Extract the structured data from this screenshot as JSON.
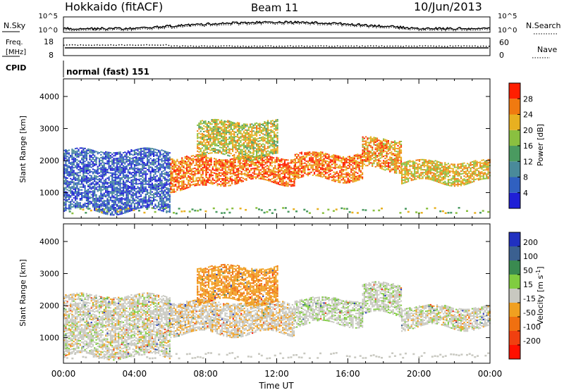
{
  "header": {
    "station": "Hokkaido (fitACF)",
    "beam": "Beam 11",
    "date": "10/Jun/2013"
  },
  "noise_panel": {
    "left_label": "N.Sky",
    "right_label": "N.Search",
    "y_ticks": [
      "10^5",
      "10^0"
    ]
  },
  "freq_panel": {
    "left_label_line1": "Freq.",
    "left_label_line2": "[MHz]",
    "left_ticks": [
      "18",
      "8"
    ],
    "right_ticks": [
      "60",
      "0"
    ],
    "right_label": "Nave"
  },
  "cpid_panel": {
    "label": "CPID",
    "value": "normal (fast) 151"
  },
  "colors": {
    "power": [
      "#1f1fd6",
      "#3060c0",
      "#4a8a9a",
      "#4a9a60",
      "#8ac040",
      "#e8b020",
      "#f07a10",
      "#ff1e00"
    ],
    "velocity": [
      "#2030c0",
      "#3b6090",
      "#3a8a50",
      "#80cc40",
      "#c8c8c0",
      "#f0a020",
      "#f07010",
      "#f04010",
      "#ff1000"
    ]
  },
  "chart_data": [
    {
      "type": "heatmap",
      "ylabel": "Slant Range [km]",
      "y_ticks": [
        "1000",
        "2000",
        "3000",
        "4000"
      ],
      "ylim": [
        200,
        4550
      ],
      "xlabel": "",
      "colorbar": {
        "label": "Power [dB]",
        "ticks": [
          "4",
          "8",
          "12",
          "16",
          "20",
          "24",
          "28"
        ],
        "range": [
          0,
          32
        ]
      },
      "echo_regions": [
        {
          "start_hour": 0.0,
          "end_hour": 6.0,
          "range_km": [
            400,
            2300
          ],
          "value": 6
        },
        {
          "start_hour": 6.0,
          "end_hour": 8.0,
          "range_km": [
            1100,
            2100
          ],
          "value": 26
        },
        {
          "start_hour": 8.0,
          "end_hour": 13.0,
          "range_km": [
            1300,
            2100
          ],
          "value": 27
        },
        {
          "start_hour": 13.0,
          "end_hour": 16.8,
          "range_km": [
            1400,
            2200
          ],
          "value": 26
        },
        {
          "start_hour": 16.8,
          "end_hour": 19.0,
          "range_km": [
            1700,
            2650
          ],
          "value": 24
        },
        {
          "start_hour": 19.0,
          "end_hour": 24.0,
          "range_km": [
            1300,
            1950
          ],
          "value": 22
        },
        {
          "start_hour": 7.5,
          "end_hour": 12.0,
          "range_km": [
            2100,
            3200
          ],
          "value": 20
        }
      ]
    },
    {
      "type": "heatmap",
      "ylabel": "Slant Range [km]",
      "y_ticks": [
        "1000",
        "2000",
        "3000",
        "4000"
      ],
      "ylim": [
        200,
        4550
      ],
      "xlabel": "Time UT",
      "x_ticks": [
        "00:00",
        "04:00",
        "08:00",
        "12:00",
        "16:00",
        "20:00",
        "00:00"
      ],
      "xlim": [
        0,
        24
      ],
      "colorbar": {
        "label": "Velocity [m s^-1]",
        "ticks": [
          "200",
          "100",
          "50",
          "15",
          "-15",
          "-50",
          "-100",
          "-200"
        ],
        "range": [
          -250,
          250
        ]
      },
      "echo_regions": [
        {
          "start_hour": 0.0,
          "end_hour": 6.0,
          "range_km": [
            400,
            2300
          ],
          "value": 0
        },
        {
          "start_hour": 6.0,
          "end_hour": 13.0,
          "range_km": [
            1100,
            2100
          ],
          "value": -5
        },
        {
          "start_hour": 13.0,
          "end_hour": 16.8,
          "range_km": [
            1400,
            2200
          ],
          "value": 5
        },
        {
          "start_hour": 16.8,
          "end_hour": 19.0,
          "range_km": [
            1700,
            2650
          ],
          "value": 5
        },
        {
          "start_hour": 19.0,
          "end_hour": 24.0,
          "range_km": [
            1300,
            1950
          ],
          "value": 0
        },
        {
          "start_hour": 7.5,
          "end_hour": 12.0,
          "range_km": [
            2100,
            3200
          ],
          "value": -40
        }
      ]
    }
  ]
}
